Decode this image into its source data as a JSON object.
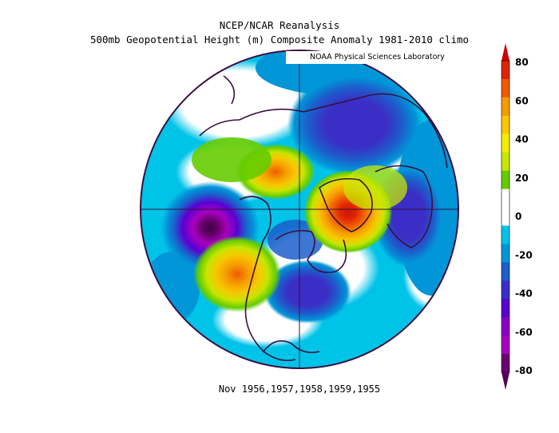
{
  "header": {
    "title": "NCEP/NCAR Reanalysis",
    "subtitle": "500mb Geopotential Height (m) Composite Anomaly 1981-2010 climo",
    "credit": "NOAA Physical Sciences Laboratory"
  },
  "footer": {
    "caption": "Nov 1956,1957,1958,1959,1955"
  },
  "colorbar": {
    "ticks": [
      "80",
      "60",
      "40",
      "20",
      "0",
      "-20",
      "-40",
      "-60",
      "-80"
    ],
    "colors": [
      "#e02400",
      "#f05a00",
      "#f59b00",
      "#f7c800",
      "#f3ec00",
      "#c8e500",
      "#66cc00",
      "#ffffff",
      "#ffffff",
      "#00c3e8",
      "#0096d8",
      "#1c5ecb",
      "#3b2ec6",
      "#5a00d0",
      "#8a00c7",
      "#a800c0",
      "#6d0070"
    ],
    "top_arrow_color": "#cc0000",
    "bottom_arrow_color": "#550055"
  },
  "map": {
    "projection": "north-polar-stereographic",
    "field": "500mb geopotential height anomaly",
    "units": "m",
    "ocean_fill": "#00c3e8"
  }
}
